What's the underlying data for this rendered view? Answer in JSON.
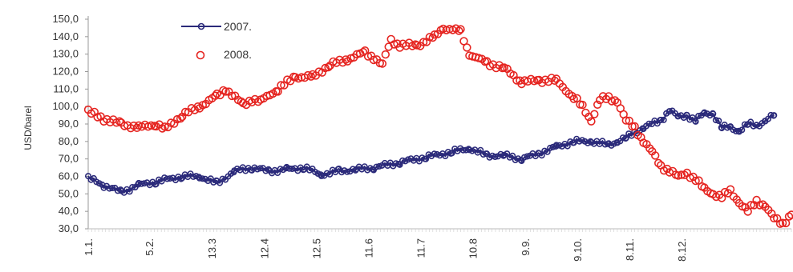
{
  "chart_data": {
    "type": "scatter",
    "title": "",
    "xlabel": "",
    "ylabel": "USD/barel",
    "ylim": [
      30,
      150
    ],
    "y_ticks": [
      "30,0",
      "40,0",
      "50,0",
      "60,0",
      "70,0",
      "80,0",
      "90,0",
      "100,0",
      "110,0",
      "120,0",
      "130,0",
      "140,0",
      "150,0"
    ],
    "x_tick_labels": [
      {
        "label": "1.1.",
        "day": 1
      },
      {
        "label": "5.2.",
        "day": 36
      },
      {
        "label": "13.3",
        "day": 72
      },
      {
        "label": "12.4",
        "day": 102
      },
      {
        "label": "12.5",
        "day": 132
      },
      {
        "label": "11.6",
        "day": 162
      },
      {
        "label": "11.7",
        "day": 192
      },
      {
        "label": "10.8",
        "day": 222
      },
      {
        "label": "9.9.",
        "day": 252
      },
      {
        "label": "9.10.",
        "day": 282
      },
      {
        "label": "8.11.",
        "day": 312
      },
      {
        "label": "8.12.",
        "day": 342
      }
    ],
    "x_range_days": [
      1,
      365
    ],
    "legend_position": "top-left",
    "series": [
      {
        "name": "2007.",
        "color": "#2b2a7a",
        "marker": "circle-with-line",
        "points": [
          [
            1,
            59
          ],
          [
            10,
            55
          ],
          [
            20,
            51
          ],
          [
            30,
            55
          ],
          [
            40,
            57
          ],
          [
            55,
            60
          ],
          [
            65,
            60
          ],
          [
            75,
            56
          ],
          [
            85,
            63
          ],
          [
            95,
            65
          ],
          [
            105,
            63
          ],
          [
            115,
            64
          ],
          [
            125,
            65
          ],
          [
            135,
            61
          ],
          [
            145,
            63
          ],
          [
            155,
            64
          ],
          [
            165,
            65
          ],
          [
            180,
            68
          ],
          [
            195,
            71
          ],
          [
            210,
            74
          ],
          [
            220,
            76
          ],
          [
            230,
            72
          ],
          [
            240,
            72
          ],
          [
            250,
            70
          ],
          [
            260,
            73
          ],
          [
            270,
            77
          ],
          [
            280,
            80
          ],
          [
            290,
            80
          ],
          [
            300,
            78
          ],
          [
            305,
            80
          ],
          [
            310,
            82
          ],
          [
            320,
            88
          ],
          [
            330,
            92
          ],
          [
            335,
            98
          ],
          [
            340,
            94
          ],
          [
            345,
            95
          ],
          [
            350,
            92
          ],
          [
            355,
            96
          ],
          [
            360,
            96
          ],
          [
            365,
            88
          ],
          [
            370,
            88
          ],
          [
            375,
            86
          ],
          [
            380,
            90
          ],
          [
            385,
            89
          ],
          [
            390,
            92
          ],
          [
            395,
            95
          ]
        ]
      },
      {
        "name": "2008.",
        "color": "#e52420",
        "marker": "open-circle",
        "points": [
          [
            1,
            97
          ],
          [
            10,
            93
          ],
          [
            20,
            90
          ],
          [
            30,
            88
          ],
          [
            40,
            90
          ],
          [
            45,
            87
          ],
          [
            55,
            95
          ],
          [
            65,
            100
          ],
          [
            75,
            106
          ],
          [
            80,
            110
          ],
          [
            90,
            101
          ],
          [
            95,
            104
          ],
          [
            100,
            103
          ],
          [
            110,
            110
          ],
          [
            120,
            117
          ],
          [
            130,
            117
          ],
          [
            140,
            124
          ],
          [
            150,
            127
          ],
          [
            160,
            131
          ],
          [
            165,
            128
          ],
          [
            170,
            124
          ],
          [
            175,
            138
          ],
          [
            180,
            135
          ],
          [
            190,
            135
          ],
          [
            200,
            140
          ],
          [
            205,
            145
          ],
          [
            215,
            143
          ],
          [
            220,
            130
          ],
          [
            230,
            125
          ],
          [
            240,
            122
          ],
          [
            250,
            114
          ],
          [
            260,
            115
          ],
          [
            270,
            115
          ],
          [
            280,
            105
          ],
          [
            285,
            100
          ],
          [
            290,
            92
          ],
          [
            295,
            104
          ],
          [
            300,
            105
          ],
          [
            305,
            103
          ],
          [
            310,
            92
          ],
          [
            315,
            88
          ],
          [
            320,
            80
          ],
          [
            325,
            74
          ],
          [
            330,
            66
          ],
          [
            335,
            63
          ],
          [
            340,
            60
          ],
          [
            345,
            62
          ],
          [
            350,
            58
          ],
          [
            355,
            53
          ],
          [
            360,
            50
          ],
          [
            365,
            48
          ],
          [
            370,
            52
          ],
          [
            375,
            45
          ],
          [
            380,
            40
          ],
          [
            385,
            46
          ],
          [
            390,
            43
          ],
          [
            395,
            36
          ],
          [
            400,
            33
          ],
          [
            405,
            38
          ]
        ]
      }
    ]
  }
}
